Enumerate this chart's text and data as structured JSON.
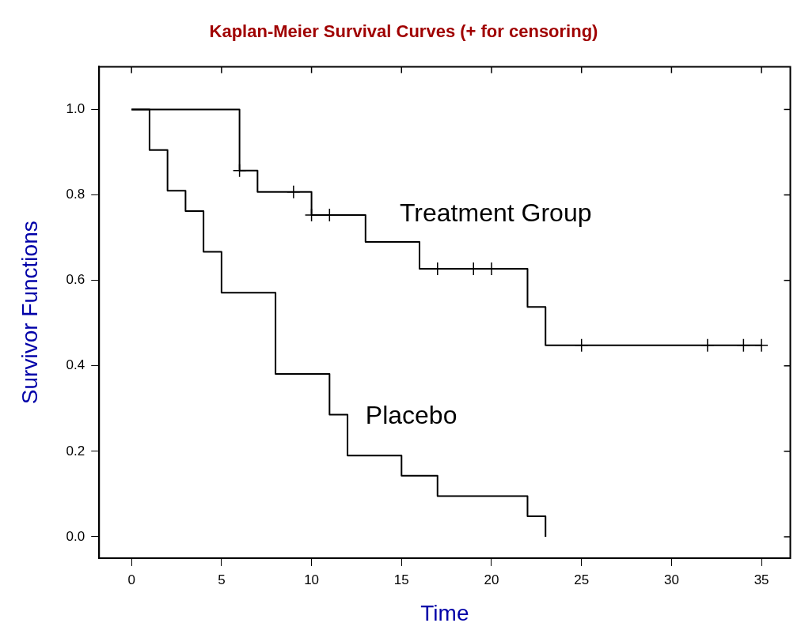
{
  "chart_data": {
    "type": "step",
    "title": "Kaplan-Meier Survival Curves (+ for censoring)",
    "xlabel": "Time",
    "ylabel": "Survivor Functions",
    "xlim": [
      -1.8,
      36.6
    ],
    "xticks": [
      0,
      5,
      10,
      15,
      20,
      25,
      30,
      35
    ],
    "ylim": [
      -0.05,
      1.1
    ],
    "yticks": [
      {
        "value": 0,
        "label": "0.0"
      },
      {
        "value": 0.2,
        "label": "0.2"
      },
      {
        "value": 0.4,
        "label": "0.4"
      },
      {
        "value": 0.6,
        "label": "0.6"
      },
      {
        "value": 0.8,
        "label": "0.8"
      },
      {
        "value": 1,
        "label": "1.0"
      }
    ],
    "grid": false,
    "legend": false,
    "series": [
      {
        "name": "Treatment Group",
        "color": "#000000",
        "x": [
          0,
          6,
          7,
          10,
          13,
          16,
          22,
          23,
          35
        ],
        "values": [
          1,
          0.857,
          0.807,
          0.753,
          0.69,
          0.627,
          0.538,
          0.448,
          0.448
        ]
      },
      {
        "name": "Placebo",
        "color": "#000000",
        "x": [
          0,
          1,
          2,
          3,
          4,
          5,
          8,
          11,
          12,
          15,
          17,
          22,
          23
        ],
        "values": [
          1,
          0.905,
          0.81,
          0.762,
          0.667,
          0.571,
          0.381,
          0.286,
          0.19,
          0.143,
          0.095,
          0.048,
          0
        ]
      },
      {
        "type": "scatter",
        "marker": "cross",
        "color": "#000000",
        "x": [
          6,
          9,
          10,
          11,
          17,
          19,
          20,
          25,
          32,
          34,
          35
        ],
        "values": [
          0.857,
          0.807,
          0.753,
          0.753,
          0.627,
          0.627,
          0.627,
          0.448,
          0.448,
          0.448,
          0.448
        ]
      }
    ]
  }
}
